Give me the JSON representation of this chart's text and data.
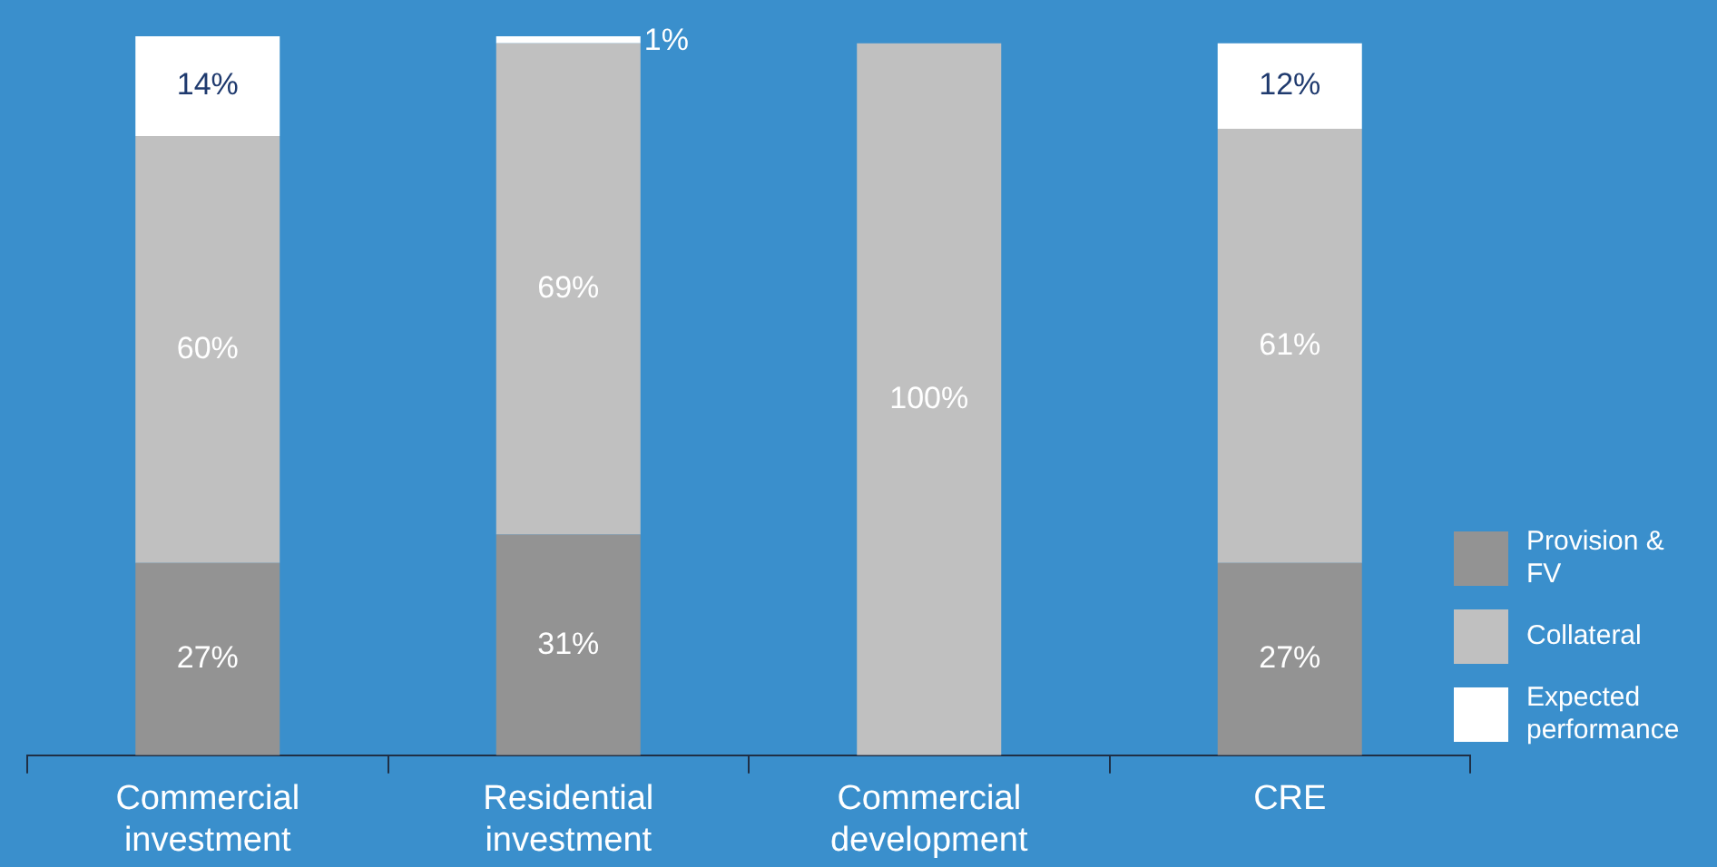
{
  "chart_data": {
    "type": "bar",
    "stacked": true,
    "categories": [
      "Commercial investment",
      "Residential investment",
      "Commercial development",
      "CRE"
    ],
    "series": [
      {
        "name": "Provision & FV",
        "color": "#939393",
        "values": [
          27,
          31,
          null,
          27
        ],
        "value_labels": [
          "27%",
          "31%",
          null,
          "27%"
        ]
      },
      {
        "name": "Collateral",
        "color": "#c0c0c0",
        "values": [
          60,
          69,
          100,
          61
        ],
        "value_labels": [
          "60%",
          "69%",
          "100%",
          "61%"
        ]
      },
      {
        "name": "Expected performance",
        "color": "#ffffff",
        "values": [
          14,
          1,
          null,
          12
        ],
        "value_labels": [
          "14%",
          "1%",
          null,
          "12%"
        ]
      }
    ],
    "ylim": [
      0,
      101
    ],
    "legend": "bottom right"
  }
}
